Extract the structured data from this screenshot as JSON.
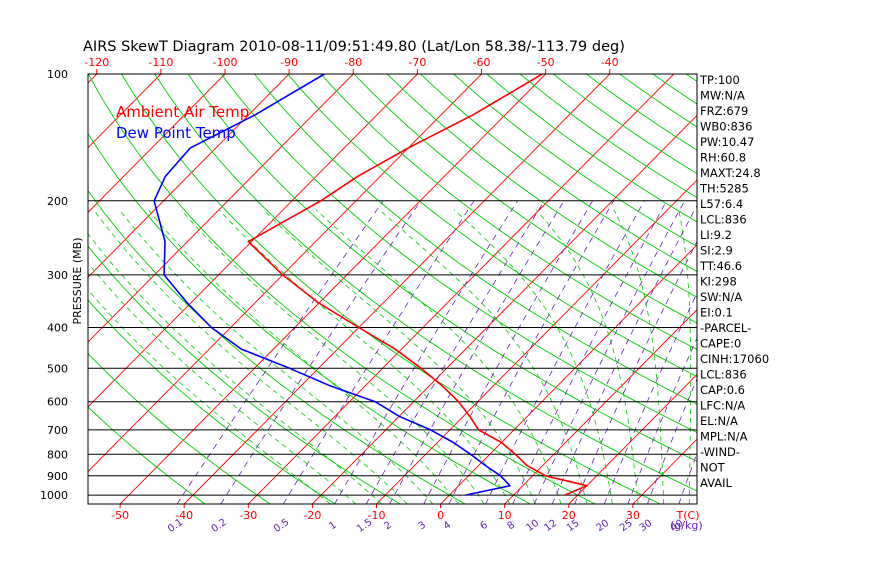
{
  "chart_data": {
    "type": "line",
    "title": "AIRS SkewT Diagram 2010-08-11/09:51:49.80 (Lat/Lon 58.38/-113.79 deg)",
    "ylabel": "PRESSURE (MB)",
    "y_scale": "log",
    "ylim": [
      1050,
      100
    ],
    "xlim_bottom_at_1050mb": [
      -55,
      40
    ],
    "skew_degC_per_decade": 65,
    "grid": true,
    "legend": {
      "placement": "top-left",
      "entries": [
        {
          "label": "Ambient Air Temp",
          "color": "#ff0000"
        },
        {
          "label": "Dew Point Temp",
          "color": "#0000ff"
        }
      ]
    },
    "pressure_ticks": [
      100,
      200,
      300,
      400,
      500,
      600,
      700,
      800,
      900,
      1000
    ],
    "bottom_temp_ticks": [
      {
        "label": "-50",
        "t": -50
      },
      {
        "label": "-40",
        "t": -40
      },
      {
        "label": "-30",
        "t": -30
      },
      {
        "label": "-20",
        "t": -20
      },
      {
        "label": "-10",
        "t": -10
      },
      {
        "label": "0",
        "t": 0
      },
      {
        "label": "10",
        "t": 10
      },
      {
        "label": "20",
        "t": 20
      },
      {
        "label": "30",
        "t": 30
      }
    ],
    "top_temp_ticks": [
      {
        "label": "-120",
        "t": -120
      },
      {
        "label": "-110",
        "t": -110
      },
      {
        "label": "-100",
        "t": -100
      },
      {
        "label": "-90",
        "t": -90
      },
      {
        "label": "-80",
        "t": -80
      },
      {
        "label": "-70",
        "t": -70
      },
      {
        "label": "-60",
        "t": -60
      },
      {
        "label": "-50",
        "t": -50
      },
      {
        "label": "-40",
        "t": -40
      }
    ],
    "temp_unit_label": "T(C)",
    "mixing_ratio_labels": [
      "0.1",
      "0.2",
      "0.5",
      "1",
      "1.5",
      "2",
      "3",
      "4",
      "6",
      "8",
      "10",
      "12",
      "15",
      "20",
      "25",
      "30",
      "40"
    ],
    "mixing_ratio_unit": "(g/kg)",
    "series": [
      {
        "name": "Ambient Air Temp",
        "color": "#ff0000",
        "points": [
          {
            "p": 100,
            "t": -50.5
          },
          {
            "p": 125,
            "t": -55
          },
          {
            "p": 150,
            "t": -60
          },
          {
            "p": 175,
            "t": -63.5
          },
          {
            "p": 200,
            "t": -65.5
          },
          {
            "p": 250,
            "t": -70.5
          },
          {
            "p": 300,
            "t": -60
          },
          {
            "p": 350,
            "t": -50
          },
          {
            "p": 400,
            "t": -40
          },
          {
            "p": 450,
            "t": -31
          },
          {
            "p": 500,
            "t": -24
          },
          {
            "p": 550,
            "t": -18
          },
          {
            "p": 600,
            "t": -13
          },
          {
            "p": 650,
            "t": -9
          },
          {
            "p": 700,
            "t": -5.5
          },
          {
            "p": 750,
            "t": 0
          },
          {
            "p": 800,
            "t": 4
          },
          {
            "p": 850,
            "t": 7.5
          },
          {
            "p": 900,
            "t": 12
          },
          {
            "p": 950,
            "t": 20
          },
          {
            "p": 1000,
            "t": 18
          }
        ]
      },
      {
        "name": "Dew Point Temp",
        "color": "#0000ff",
        "points": [
          {
            "p": 100,
            "t": -84.5
          },
          {
            "p": 125,
            "t": -89
          },
          {
            "p": 150,
            "t": -94
          },
          {
            "p": 175,
            "t": -93.5
          },
          {
            "p": 200,
            "t": -91.5
          },
          {
            "p": 250,
            "t": -83.5
          },
          {
            "p": 300,
            "t": -78.5
          },
          {
            "p": 350,
            "t": -70.5
          },
          {
            "p": 400,
            "t": -63
          },
          {
            "p": 450,
            "t": -55
          },
          {
            "p": 500,
            "t": -44.5
          },
          {
            "p": 550,
            "t": -35.5
          },
          {
            "p": 600,
            "t": -26
          },
          {
            "p": 650,
            "t": -20
          },
          {
            "p": 700,
            "t": -13
          },
          {
            "p": 750,
            "t": -7.5
          },
          {
            "p": 800,
            "t": -3
          },
          {
            "p": 850,
            "t": 1
          },
          {
            "p": 900,
            "t": 5
          },
          {
            "p": 950,
            "t": 8
          },
          {
            "p": 1000,
            "t": 2.5
          }
        ]
      }
    ]
  },
  "indices": [
    "TP:100",
    "MW:N/A",
    "FRZ:679",
    "WB0:836",
    "PW:10.47",
    "RH:60.8",
    "MAXT:24.8",
    "TH:5285",
    "L57:6.4",
    "LCL:836",
    "LI:9.2",
    "SI:2.9",
    "TT:46.6",
    "KI:298",
    "SW:N/A",
    "EI:0.1",
    "-PARCEL-",
    "CAPE:0",
    "CINH:17060",
    "LCL:836",
    "CAP:0.6",
    "LFC:N/A",
    "EL:N/A",
    "MPL:N/A",
    "-WIND-",
    "NOT",
    "AVAIL"
  ],
  "colors": {
    "isotherm": "#ff0000",
    "dry_adiabat": "#00cc00",
    "moist_adiabat": "#00cc00",
    "mixing_ratio": "#6622aa",
    "isobar": "#000000",
    "top_tick_labels": "#ff0000",
    "bottom_tick_labels": "#ff0000",
    "mixing_labels": "#6622aa"
  }
}
